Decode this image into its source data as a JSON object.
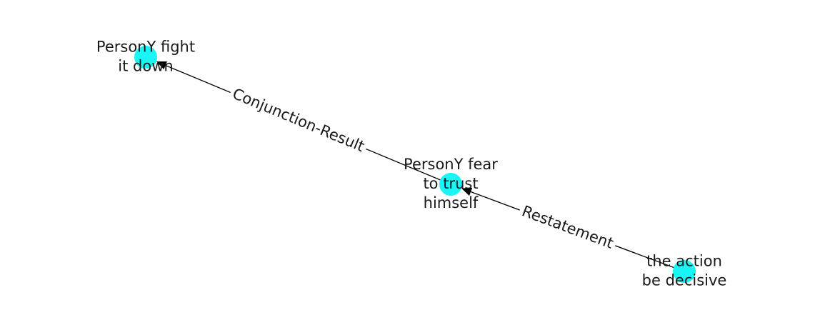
{
  "diagram": {
    "node_color": "#19f5f5",
    "edge_color": "#000000",
    "text_color": "#1a1a1a",
    "nodes": [
      {
        "id": "n1",
        "lines": [
          "PersonY fight",
          "it down"
        ]
      },
      {
        "id": "n2",
        "lines": [
          "PersonY fear",
          "to trust",
          "himself"
        ]
      },
      {
        "id": "n3",
        "lines": [
          "the action",
          "be decisive"
        ]
      }
    ],
    "edges": [
      {
        "from": "n2",
        "to": "n1",
        "label": "Conjunction-Result"
      },
      {
        "from": "n3",
        "to": "n2",
        "label": "Restatement"
      }
    ]
  }
}
